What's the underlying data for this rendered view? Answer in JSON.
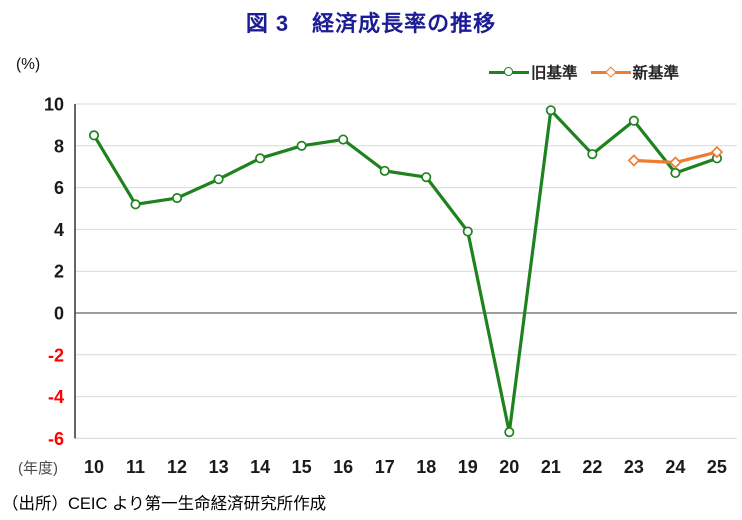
{
  "figure": {
    "source": "（出所）CEIC より第一生命経済研究所作成"
  },
  "colors": {
    "title": "#1c1c96",
    "old_series": "#1e821e",
    "new_series": "#ed7d31",
    "grid_line": "#d9d9d9",
    "zero_line": "#7f7f7f",
    "axis_line": "#404040",
    "tick_label": "#1a1a1a",
    "negative_tick_label": "#ff0000",
    "x_unit_label": "#4d4d4d"
  },
  "chart_data": {
    "type": "line",
    "title": "図 3　経済成長率の推移",
    "categories": [
      "10",
      "11",
      "12",
      "13",
      "14",
      "15",
      "16",
      "17",
      "18",
      "19",
      "20",
      "21",
      "22",
      "23",
      "24",
      "25"
    ],
    "series": [
      {
        "name": "旧基準",
        "color": "#1e821e",
        "marker": "circle",
        "values": [
          8.5,
          5.2,
          5.5,
          6.4,
          7.4,
          8.0,
          8.3,
          6.8,
          6.5,
          3.9,
          -5.7,
          9.7,
          7.6,
          9.2,
          6.7,
          7.4
        ]
      },
      {
        "name": "新基準",
        "color": "#ed7d31",
        "marker": "diamond",
        "values": [
          null,
          null,
          null,
          null,
          null,
          null,
          null,
          null,
          null,
          null,
          null,
          null,
          null,
          7.3,
          7.2,
          7.7
        ]
      }
    ],
    "xlabel": "(年度)",
    "ylabel": "(%)",
    "ylim": [
      -6,
      10
    ],
    "ytick_step": 2,
    "grid": true,
    "legend_position": "top-right"
  }
}
